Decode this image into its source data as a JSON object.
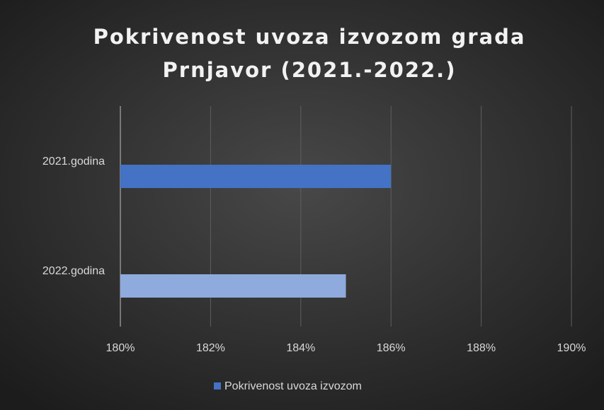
{
  "chart_data": {
    "type": "bar",
    "orientation": "horizontal",
    "title": "Pokrivenost uvoza izvozom grada Prnjavor (2021.-2022.)",
    "categories": [
      "2021.godina",
      "2022.godina"
    ],
    "series": [
      {
        "name": "Pokrivenost uvoza izvozom",
        "color": "#4472c4",
        "colors": [
          "#4472c4",
          "#8faadc"
        ],
        "values": [
          186,
          185
        ]
      }
    ],
    "xlim": [
      180,
      190
    ],
    "xticks": [
      {
        "value": 180,
        "label": "180%"
      },
      {
        "value": 182,
        "label": "182%"
      },
      {
        "value": 184,
        "label": "184%"
      },
      {
        "value": 186,
        "label": "186%"
      },
      {
        "value": 188,
        "label": "188%"
      },
      {
        "value": 190,
        "label": "190%"
      }
    ],
    "grid": true,
    "legend": "bottom"
  }
}
